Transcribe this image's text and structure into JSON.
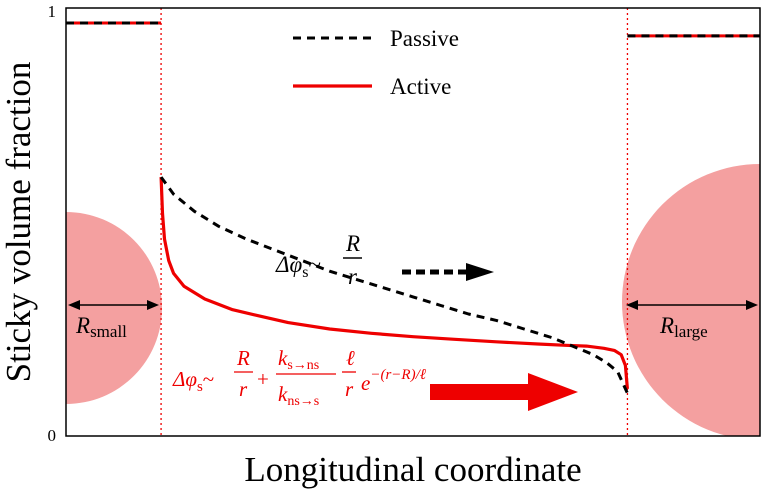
{
  "chart_data": {
    "type": "line",
    "title": "",
    "xlabel": "Longitudinal coordinate",
    "ylabel": "Sticky volume fraction",
    "xlim": [
      0,
      1
    ],
    "ylim": [
      0,
      1
    ],
    "yticks": [
      "0",
      "1"
    ],
    "grid": false,
    "legend": {
      "placement": "top-center",
      "entries": [
        {
          "label": "Passive",
          "style": "dashed",
          "color": "#000000"
        },
        {
          "label": "Active",
          "style": "solid",
          "color": "#ee0000"
        }
      ]
    },
    "boundaries": {
      "small_end": 0.137,
      "large_start": 0.809,
      "color": "#ee0000",
      "style": "dotted"
    },
    "series": [
      {
        "name": "Passive",
        "color": "#000000",
        "style": "dashed",
        "x": [
          0.137,
          0.155,
          0.185,
          0.22,
          0.26,
          0.3,
          0.34,
          0.38,
          0.42,
          0.46,
          0.5,
          0.54,
          0.58,
          0.62,
          0.66,
          0.7,
          0.73,
          0.76,
          0.78,
          0.795,
          0.809
        ],
        "values": [
          0.605,
          0.565,
          0.525,
          0.49,
          0.46,
          0.435,
          0.41,
          0.385,
          0.365,
          0.345,
          0.325,
          0.305,
          0.285,
          0.27,
          0.25,
          0.23,
          0.21,
          0.19,
          0.17,
          0.15,
          0.1
        ]
      },
      {
        "name": "Active",
        "color": "#ee0000",
        "style": "solid",
        "x": [
          0.137,
          0.139,
          0.142,
          0.148,
          0.155,
          0.17,
          0.2,
          0.24,
          0.28,
          0.32,
          0.38,
          0.44,
          0.5,
          0.56,
          0.62,
          0.68,
          0.72,
          0.75,
          0.775,
          0.79,
          0.8,
          0.806,
          0.809
        ],
        "values": [
          0.605,
          0.52,
          0.46,
          0.41,
          0.38,
          0.35,
          0.32,
          0.295,
          0.28,
          0.265,
          0.25,
          0.24,
          0.232,
          0.226,
          0.22,
          0.215,
          0.212,
          0.21,
          0.205,
          0.2,
          0.19,
          0.165,
          0.11
        ]
      }
    ],
    "end_levels": {
      "small_end_passive": 0.965,
      "small_end_active": 0.965,
      "large_end_passive": 0.935,
      "large_end_active": 0.935
    },
    "reservoirs": {
      "small": {
        "label": "R",
        "subscript": "small",
        "color": "#f4a0a0"
      },
      "large": {
        "label": "R",
        "subscript": "large",
        "color": "#f4a0a0"
      }
    },
    "annotations": {
      "passive_formula": {
        "delta_phi": "Δφ",
        "sub": "s",
        "sim": "~",
        "numerator": "R",
        "denominator": "r",
        "color": "#000000"
      },
      "active_formula": {
        "delta_phi": "Δφ",
        "sub": "s",
        "sim": "~",
        "frac1_num": "R",
        "frac1_den": "r",
        "plus": "+",
        "frac2_num_k": "k",
        "frac2_num_sub": "s→ns",
        "frac2_den_k": "k",
        "frac2_den_sub": "ns→s",
        "frac3_num": "ℓ",
        "frac3_den": "r",
        "exp_base": "e",
        "exponent": "−(r−R)/ℓ",
        "color": "#ee0000"
      }
    }
  }
}
